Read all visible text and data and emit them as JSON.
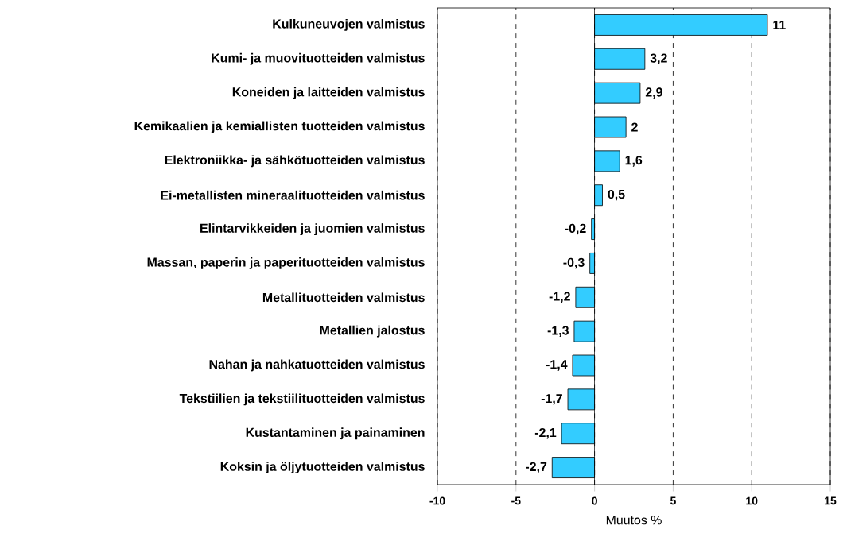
{
  "chart_data": {
    "type": "bar",
    "orientation": "horizontal",
    "xlabel": "Muutos %",
    "categories": [
      "Kulkuneuvojen valmistus",
      "Kumi- ja muovituotteiden valmistus",
      "Koneiden ja laitteiden valmistus",
      "Kemikaalien ja kemiallisten tuotteiden valmistus",
      "Elektroniikka- ja sähkötuotteiden valmistus",
      "Ei-metallisten mineraalituotteiden valmistus",
      "Elintarvikkeiden ja juomien valmistus",
      "Massan, paperin ja paperituotteiden valmistus",
      "Metallituotteiden valmistus",
      "Metallien jalostus",
      "Nahan ja nahkatuotteiden valmistus",
      "Tekstiilien ja tekstiilituotteiden valmistus",
      "Kustantaminen ja painaminen",
      "Koksin ja öljytuotteiden valmistus"
    ],
    "values": [
      11,
      3.2,
      2.9,
      2,
      1.6,
      0.5,
      -0.2,
      -0.3,
      -1.2,
      -1.3,
      -1.4,
      -1.7,
      -2.1,
      -2.7
    ],
    "value_labels": [
      "11",
      "3,2",
      "2,9",
      "2",
      "1,6",
      "0,5",
      "-0,2",
      "-0,3",
      "-1,2",
      "-1,3",
      "-1,4",
      "-1,7",
      "-2,1",
      "-2,7"
    ],
    "color": "#33ccff",
    "xlim": [
      -10,
      15
    ],
    "xticks": [
      -10,
      -5,
      0,
      5,
      10,
      15
    ],
    "grid": "x"
  }
}
